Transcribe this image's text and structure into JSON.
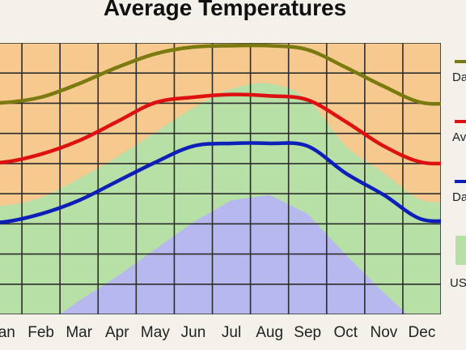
{
  "chart_data": {
    "type": "line",
    "title": "Average Temperatures",
    "categories": [
      "Jan",
      "Feb",
      "Mar",
      "Apr",
      "May",
      "Jun",
      "Jul",
      "Aug",
      "Sep",
      "Oct",
      "Nov",
      "Dec"
    ],
    "ylim": [
      0,
      1
    ],
    "series": [
      {
        "name": "Da",
        "color": "#7a7a10",
        "values": [
          0.78,
          0.8,
          0.85,
          0.91,
          0.96,
          0.985,
          0.99,
          0.99,
          0.975,
          0.91,
          0.84,
          0.78
        ]
      },
      {
        "name": "Av",
        "color": "#dd1111",
        "values": [
          0.56,
          0.59,
          0.64,
          0.71,
          0.78,
          0.8,
          0.81,
          0.805,
          0.79,
          0.71,
          0.62,
          0.56
        ]
      },
      {
        "name": "Da",
        "color": "#0d1fb8",
        "values": [
          0.34,
          0.37,
          0.42,
          0.49,
          0.56,
          0.62,
          0.63,
          0.63,
          0.62,
          0.52,
          0.44,
          0.35
        ]
      }
    ],
    "bands": {
      "us_upper": [
        0.4,
        0.43,
        0.5,
        0.58,
        0.67,
        0.76,
        0.83,
        0.85,
        0.79,
        0.62,
        0.52,
        0.42
      ],
      "us_lower": [
        -0.1,
        -0.05,
        0.05,
        0.14,
        0.24,
        0.34,
        0.42,
        0.44,
        0.37,
        0.22,
        0.08,
        -0.05
      ],
      "us_label": "US"
    },
    "band_colors": [
      "#f6c98f",
      "#b6e0a6",
      "#b7b8ee"
    ],
    "grid": true,
    "legend": "right"
  }
}
